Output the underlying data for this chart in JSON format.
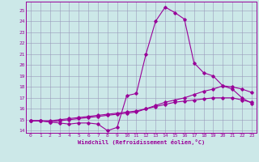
{
  "xlabel": "Windchill (Refroidissement éolien,°C)",
  "xlim": [
    -0.5,
    23.5
  ],
  "ylim": [
    13.8,
    25.8
  ],
  "yticks": [
    14,
    15,
    16,
    17,
    18,
    19,
    20,
    21,
    22,
    23,
    24,
    25
  ],
  "xticks": [
    0,
    1,
    2,
    3,
    4,
    5,
    6,
    7,
    8,
    9,
    10,
    11,
    12,
    13,
    14,
    15,
    16,
    17,
    18,
    19,
    20,
    21,
    22,
    23
  ],
  "bg_color": "#cce8e8",
  "grid_color": "#9999bb",
  "line_color": "#990099",
  "line1_x": [
    0,
    1,
    2,
    3,
    4,
    5,
    6,
    7,
    8,
    9,
    10,
    11,
    12,
    13,
    14,
    15,
    16,
    17,
    18,
    19,
    20,
    21,
    22,
    23
  ],
  "line1_y": [
    14.9,
    14.9,
    14.8,
    14.7,
    14.6,
    14.7,
    14.7,
    14.6,
    14.0,
    14.3,
    17.2,
    17.4,
    21.0,
    24.0,
    25.3,
    24.8,
    24.2,
    20.2,
    19.3,
    19.0,
    18.1,
    17.8,
    17.0,
    16.5
  ],
  "line2_x": [
    0,
    1,
    2,
    3,
    4,
    5,
    6,
    7,
    8,
    9,
    10,
    11,
    12,
    13,
    14,
    15,
    16,
    17,
    18,
    19,
    20,
    21,
    22,
    23
  ],
  "line2_y": [
    14.9,
    14.9,
    14.8,
    14.9,
    15.0,
    15.1,
    15.2,
    15.3,
    15.4,
    15.5,
    15.6,
    15.7,
    16.0,
    16.3,
    16.6,
    16.8,
    17.0,
    17.3,
    17.6,
    17.8,
    18.1,
    18.0,
    17.8,
    17.5
  ],
  "line3_x": [
    0,
    1,
    2,
    3,
    4,
    5,
    6,
    7,
    8,
    9,
    10,
    11,
    12,
    13,
    14,
    15,
    16,
    17,
    18,
    19,
    20,
    21,
    22,
    23
  ],
  "line3_y": [
    14.9,
    14.9,
    14.9,
    15.0,
    15.1,
    15.2,
    15.3,
    15.4,
    15.5,
    15.6,
    15.7,
    15.8,
    16.0,
    16.2,
    16.4,
    16.6,
    16.7,
    16.8,
    16.9,
    17.0,
    17.0,
    17.0,
    16.8,
    16.6
  ]
}
